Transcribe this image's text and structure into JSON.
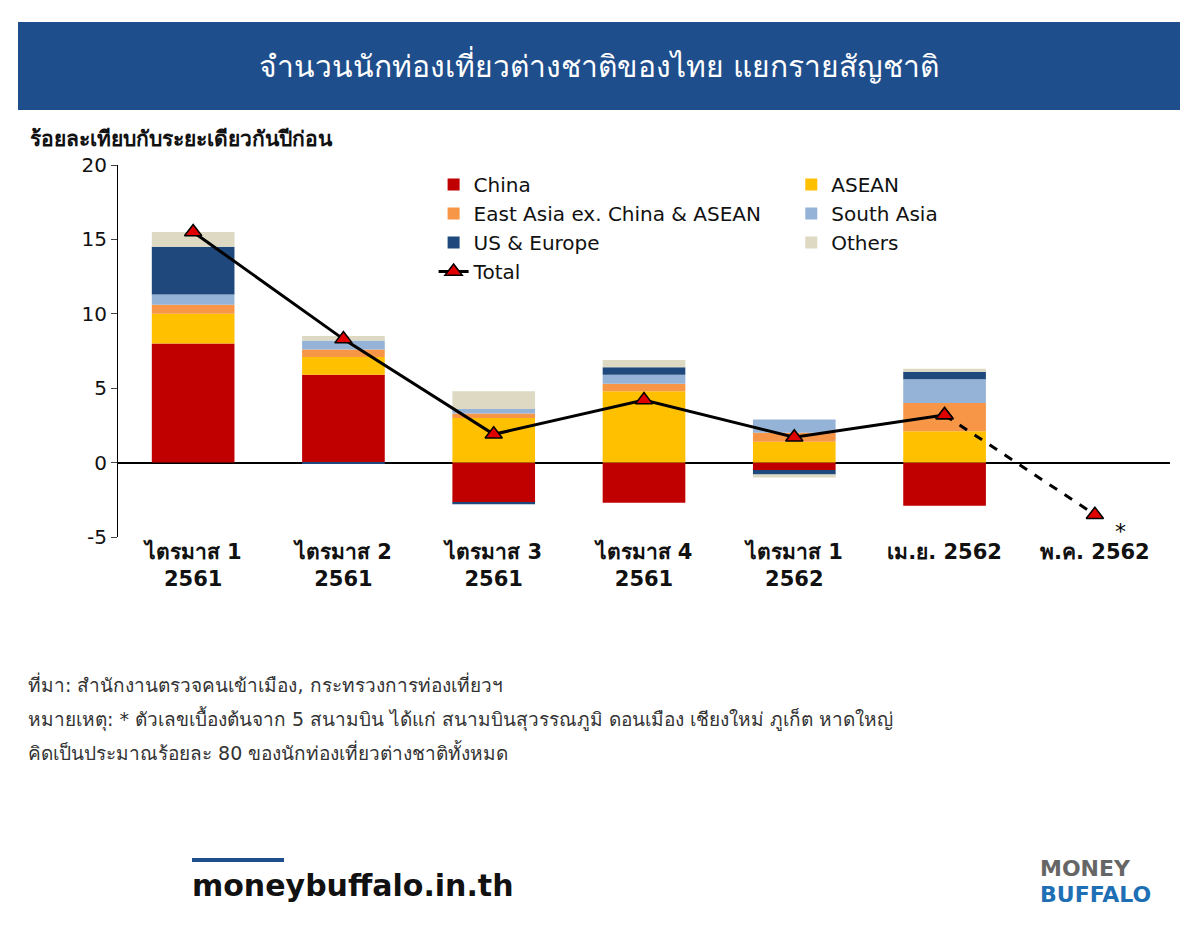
{
  "chart_data": {
    "type": "bar",
    "stacked": true,
    "title": "จำนวนนักท่องเที่ยวต่างชาติของไทย แยกรายสัญชาติ",
    "y_label": "ร้อยละเทียบกับระยะเดียวกันปีก่อน",
    "categories": [
      "ไตรมาส 1\n2561",
      "ไตรมาส 2\n2561",
      "ไตรมาส 3\n2561",
      "ไตรมาส 4\n2561",
      "ไตรมาส 1\n2562",
      "เม.ย. 2562",
      "พ.ค. 2562"
    ],
    "series": [
      {
        "name": "China",
        "color": "#c00000",
        "values": [
          8.0,
          5.9,
          -2.7,
          -2.7,
          -0.5,
          -2.9,
          null
        ]
      },
      {
        "name": "ASEAN",
        "color": "#ffc000",
        "values": [
          2.0,
          1.2,
          3.0,
          4.8,
          1.4,
          2.1,
          null
        ]
      },
      {
        "name": "East Asia ex. China & ASEAN",
        "color": "#f79646",
        "values": [
          0.6,
          0.5,
          0.3,
          0.5,
          0.6,
          1.9,
          null
        ]
      },
      {
        "name": "South Asia",
        "color": "#95b3d7",
        "values": [
          0.7,
          0.6,
          0.3,
          0.6,
          0.9,
          1.6,
          null
        ]
      },
      {
        "name": "US & Europe",
        "color": "#1f497d",
        "values": [
          3.2,
          -0.1,
          -0.1,
          0.5,
          -0.3,
          0.5,
          null
        ]
      },
      {
        "name": "Others",
        "color": "#ddd9c3",
        "values": [
          1.0,
          0.3,
          1.2,
          0.5,
          -0.2,
          0.2,
          null
        ]
      },
      {
        "name": "Total",
        "type": "line",
        "color": "#000000",
        "marker": "triangle-up",
        "line_style": "solid",
        "values": [
          15.5,
          8.3,
          1.9,
          4.2,
          1.7,
          3.2,
          null
        ]
      },
      {
        "name": "Total",
        "type": "line",
        "color": "#000000",
        "marker": "triangle-up",
        "line_style": "dash",
        "values": [
          null,
          null,
          null,
          null,
          null,
          3.2,
          -3.5
        ]
      }
    ],
    "ylim": [
      -5,
      20
    ],
    "yticks": [
      -5,
      0,
      5,
      10,
      15,
      20
    ],
    "grid": false,
    "legend": "top right",
    "annotations": [
      {
        "text": "*",
        "category": "พ.ค. 2562",
        "y": -3.5
      }
    ]
  },
  "notes": [
    "ที่มา: สำนักงานตรวจคนเข้าเมือง, กระทรวงการท่องเที่ยวฯ",
    "หมายเหตุ: * ตัวเลขเบื้องต้นจาก 5 สนามบิน ได้แก่ สนามบินสุวรรณภูมิ ดอนเมือง เชียงใหม่ ภูเก็ต หาดใหญ่",
    "คิดเป็นประมาณร้อยละ 80 ของนักท่องเที่ยวต่างชาติทั้งหมด"
  ],
  "footer": "moneybuffalo.in.th",
  "logo": [
    "MONEY",
    "BUFFALO"
  ]
}
